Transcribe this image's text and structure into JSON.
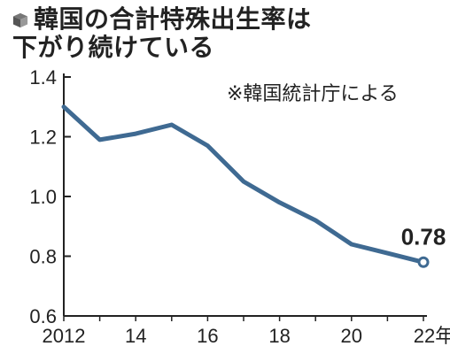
{
  "title": {
    "line1": "韓国の合計特殊出生率は",
    "line2": "下がり続けている"
  },
  "source_note": "※韓国統計庁による",
  "colors": {
    "line": "#3f6a92",
    "axis": "#222222",
    "text": "#222222"
  },
  "chart_data": {
    "type": "line",
    "title": "韓国の合計特殊出生率は下がり続けている",
    "xlabel": "",
    "ylabel": "",
    "x": [
      2012,
      2013,
      2014,
      2015,
      2016,
      2017,
      2018,
      2019,
      2020,
      2021,
      2022
    ],
    "series": [
      {
        "values": [
          1.3,
          1.19,
          1.21,
          1.24,
          1.17,
          1.05,
          0.98,
          0.92,
          0.84,
          0.81,
          0.78
        ]
      }
    ],
    "ylim": [
      0.6,
      1.4
    ],
    "yticks": [
      "1.4",
      "1.2",
      "1.0",
      "0.8",
      "0.6"
    ],
    "xticks": [
      "2012",
      "14",
      "16",
      "18",
      "20",
      "22年"
    ],
    "annotation": {
      "label": "0.78"
    },
    "grid": false
  }
}
